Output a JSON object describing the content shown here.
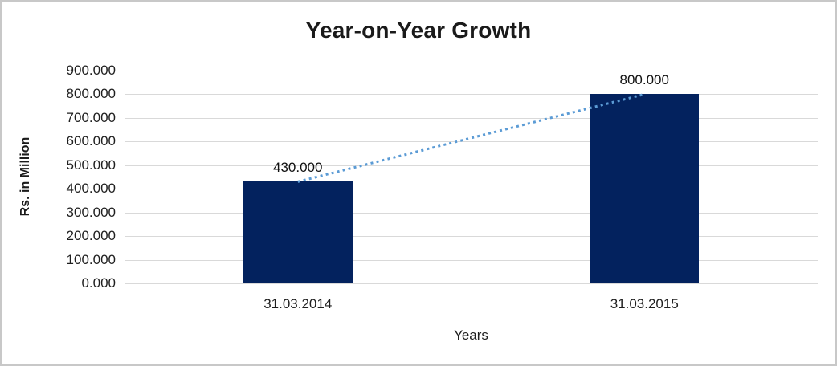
{
  "chart_data": {
    "type": "bar",
    "title": "Year-on-Year Growth",
    "categories": [
      "31.03.2014",
      "31.03.2015"
    ],
    "values": [
      430.0,
      800.0
    ],
    "value_labels": [
      "430.000",
      "800.000"
    ],
    "xlabel": "Years",
    "ylabel": "Rs. in Million",
    "ylim": [
      0,
      900
    ],
    "ytick_labels": [
      "900.000",
      "800.000",
      "700.000",
      "600.000",
      "500.000",
      "400.000",
      "300.000",
      "200.000",
      "100.000",
      "0.000"
    ],
    "grid": true,
    "legend": false,
    "trendline": {
      "style": "dotted",
      "color": "#5B9BD5",
      "connects": [
        "31.03.2014",
        "31.03.2015"
      ]
    },
    "colors": {
      "bar": "#03225E",
      "gridline": "#D9D9D9",
      "frame_border": "#C8C8C8",
      "title_text": "#1A1A1A",
      "label_text": "#1F1F1F"
    }
  }
}
